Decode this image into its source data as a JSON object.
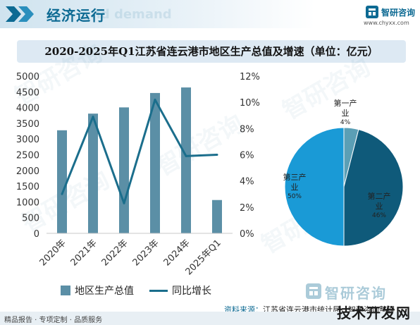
{
  "header": {
    "title": "经济运行",
    "ghost_text": "nd demand",
    "brand_name": "智研咨询",
    "brand_url": "www.chyxx.com"
  },
  "chart_title": "2020-2025年Q1江苏省连云港市地区生产总值及增速（单位：亿元）",
  "colors": {
    "bar": "#5b8fa6",
    "line": "#1b6e8c",
    "pie_primary": "#5b9fb5",
    "pie_secondary": "#0f5a7a",
    "pie_tertiary": "#1a9ad6",
    "accent": "#0d6a93"
  },
  "chart_data": [
    {
      "type": "bar",
      "categories": [
        "2020年",
        "2021年",
        "2022年",
        "2023年",
        "2024年",
        "2025年Q1"
      ],
      "series": [
        {
          "name": "地区生产总值",
          "type": "bar",
          "axis": "left",
          "values": [
            3278,
            3808,
            4006,
            4464,
            4640,
            1060
          ]
        },
        {
          "name": "同比增长",
          "type": "line",
          "axis": "right",
          "values": [
            3.0,
            8.9,
            2.3,
            10.2,
            5.9,
            6.0
          ]
        }
      ],
      "ylim_left": [
        0,
        5000
      ],
      "ylim_right": [
        0,
        12
      ],
      "left_ticks": [
        0,
        500,
        1000,
        1500,
        2000,
        2500,
        3000,
        3500,
        4000,
        4500,
        5000
      ],
      "right_ticks": [
        "0%",
        "2%",
        "4%",
        "6%",
        "8%",
        "10%",
        "12%"
      ],
      "legend": "bottom",
      "grid": false
    },
    {
      "type": "pie",
      "slices": [
        {
          "label": "第一产业",
          "value": 4,
          "display": "4%"
        },
        {
          "label": "第二产业",
          "value": 46,
          "display": "46%"
        },
        {
          "label": "第三产业",
          "value": 50,
          "display": "50%"
        }
      ]
    }
  ],
  "legend": {
    "bar_label": "地区生产总值",
    "line_label": "同比增长"
  },
  "source": {
    "label": "资料来源：",
    "text": "江苏省连云港市统计局，智研咨询整理"
  },
  "footer": {
    "text": "精品报告 · 专项定制 · 品质服务",
    "corner_mark": "技术开发网"
  }
}
